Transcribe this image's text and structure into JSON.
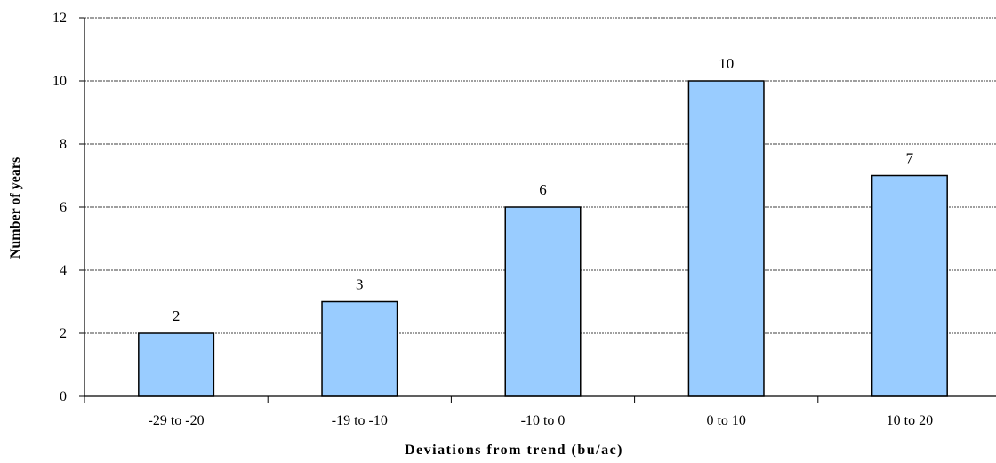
{
  "chart_data": {
    "type": "bar",
    "title": "",
    "xlabel": "Deviations from trend (bu/ac)",
    "ylabel": "Number of years",
    "categories": [
      "-29 to -20",
      "-19 to -10",
      "-10 to 0",
      "0 to 10",
      "10 to 20"
    ],
    "values": [
      2,
      3,
      6,
      10,
      7
    ],
    "data_labels": [
      "2",
      "3",
      "6",
      "10",
      "7"
    ],
    "ylim": [
      0,
      12
    ],
    "yticks": [
      "0",
      "2",
      "4",
      "6",
      "8",
      "10",
      "12"
    ],
    "grid": true,
    "legend": "none",
    "colors": {
      "bar_fill": "#99ccff",
      "bar_stroke": "#000000",
      "grid": "#000000"
    }
  }
}
